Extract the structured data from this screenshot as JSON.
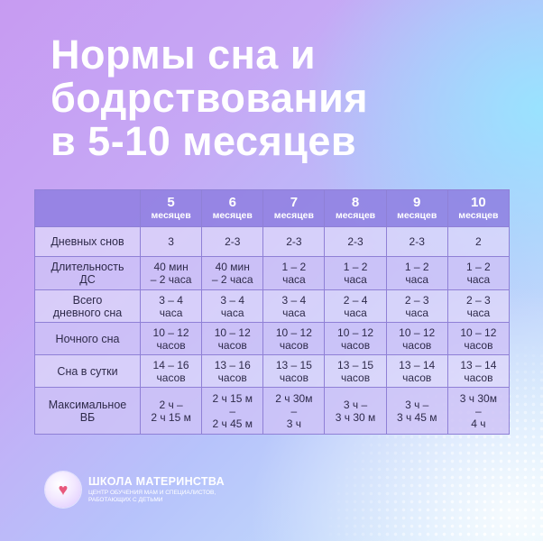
{
  "title": {
    "line1": "Нормы сна и",
    "line2": "бодрствования",
    "line3": "в 5-10 месяцев"
  },
  "table": {
    "columns": [
      {
        "num": "5",
        "unit": "месяцев"
      },
      {
        "num": "6",
        "unit": "месяцев"
      },
      {
        "num": "7",
        "unit": "месяцев"
      },
      {
        "num": "8",
        "unit": "месяцев"
      },
      {
        "num": "9",
        "unit": "месяцев"
      },
      {
        "num": "10",
        "unit": "месяцев"
      }
    ],
    "rows": [
      {
        "label": "Дневных снов",
        "cells": [
          "3",
          "2-3",
          "2-3",
          "2-3",
          "2-3",
          "2"
        ]
      },
      {
        "label": "Длительность\nДС",
        "cells": [
          "40 мин\n– 2 часа",
          "40 мин\n– 2 часа",
          "1 – 2\nчаса",
          "1 – 2\nчаса",
          "1 – 2\nчаса",
          "1 – 2\nчаса"
        ]
      },
      {
        "label": "Всего\nдневного сна",
        "cells": [
          "3 – 4\nчаса",
          "3 – 4\nчаса",
          "3 – 4\nчаса",
          "2 – 4\nчаса",
          "2 – 3\nчаса",
          "2 – 3\nчаса"
        ]
      },
      {
        "label": "Ночного сна",
        "cells": [
          "10 – 12\nчасов",
          "10 – 12\nчасов",
          "10 – 12\nчасов",
          "10 – 12\nчасов",
          "10 – 12\nчасов",
          "10 – 12\nчасов"
        ]
      },
      {
        "label": "Сна в сутки",
        "cells": [
          "14 – 16\nчасов",
          "13 – 16\nчасов",
          "13 – 15\nчасов",
          "13 – 15\nчасов",
          "13 – 14\nчасов",
          "13 – 14\nчасов"
        ]
      },
      {
        "label": "Максимальное\nВБ",
        "cells": [
          "2 ч –\n2 ч 15 м",
          "2 ч 15 м\n–\n2 ч 45 м",
          "2 ч 30м\n–\n3 ч",
          "3 ч –\n3 ч 30 м",
          "3 ч –\n3 ч 45 м",
          "3 ч 30м\n–\n4 ч"
        ]
      }
    ]
  },
  "logo": {
    "name": "ШКОЛА МАТЕРИНСТВА",
    "subtitle": "ЦЕНТР ОБУЧЕНИЯ МАМ И СПЕЦИАЛИСТОВ,\nРАБОТАЮЩИХ С ДЕТЬМИ",
    "icon": "heart-icon"
  },
  "colors": {
    "header": "#8e7ee0",
    "row_light": "#ded6fa",
    "row_dark": "#cec2f6",
    "border": "#8f80d6",
    "heart": "#e8587c"
  }
}
